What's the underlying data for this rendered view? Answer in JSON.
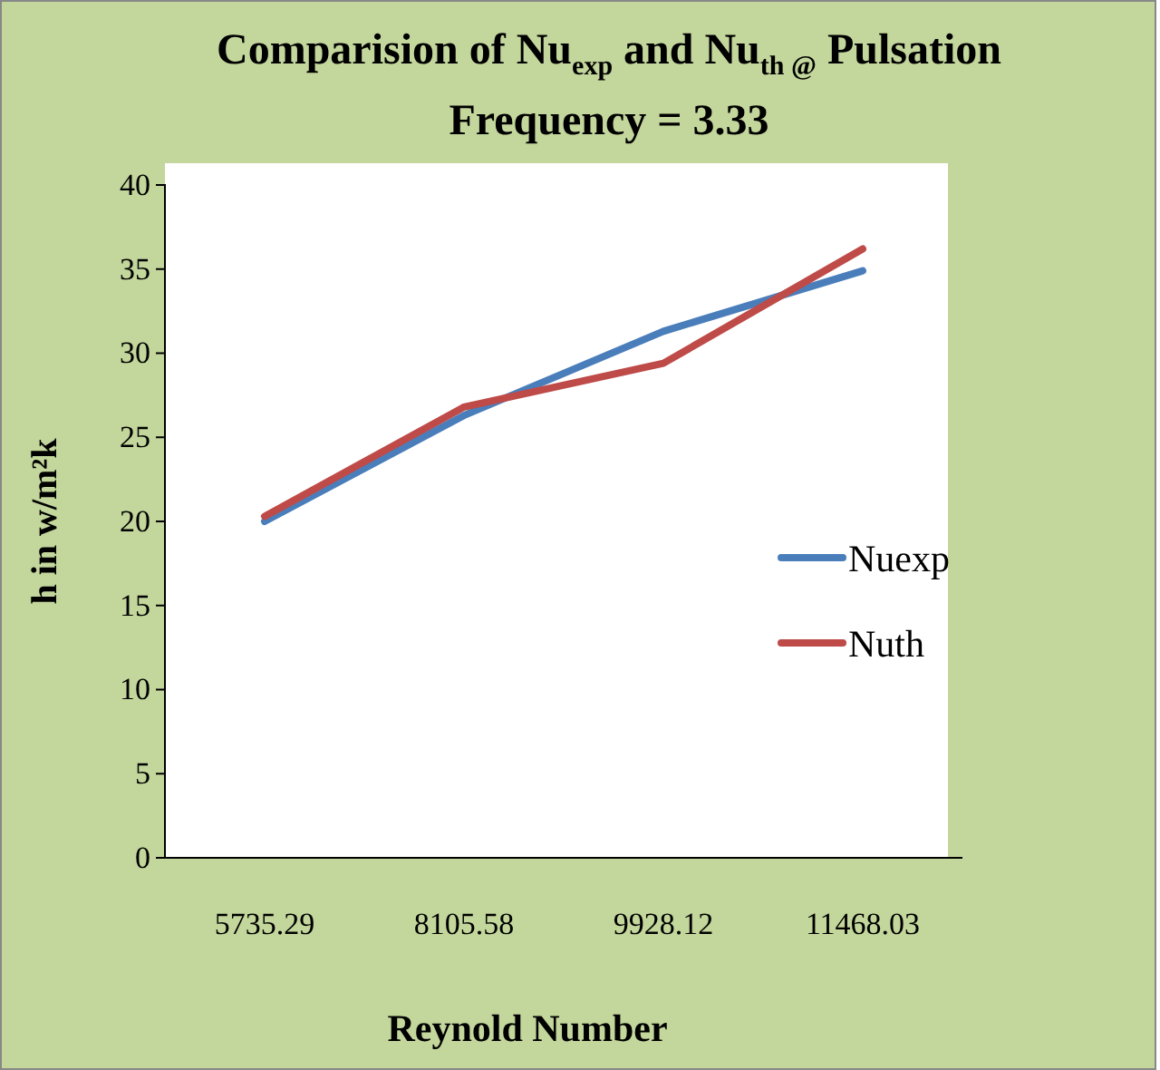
{
  "chart_data": {
    "type": "line",
    "title": "Comparision of Nu$_{exp}$ and Nu$_{th @}$ Pulsation Frequency = 3.33",
    "xlabel": "Reynold Number",
    "ylabel": "h in w/m²k",
    "categories": [
      "5735.29",
      "8105.58",
      "9928.12",
      "11468.03"
    ],
    "series": [
      {
        "name": "Nuexp",
        "color": "#4a7ebb",
        "values": [
          20.0,
          26.3,
          31.3,
          34.9
        ]
      },
      {
        "name": "Nuth",
        "color": "#be4b48",
        "values": [
          20.3,
          26.8,
          29.4,
          36.2
        ]
      }
    ],
    "ylim": [
      0,
      40
    ],
    "yticks": [
      0,
      5,
      10,
      15,
      20,
      25,
      30,
      35,
      40
    ],
    "grid": false,
    "legend": "right",
    "marker": "none",
    "line_style": "solid"
  }
}
